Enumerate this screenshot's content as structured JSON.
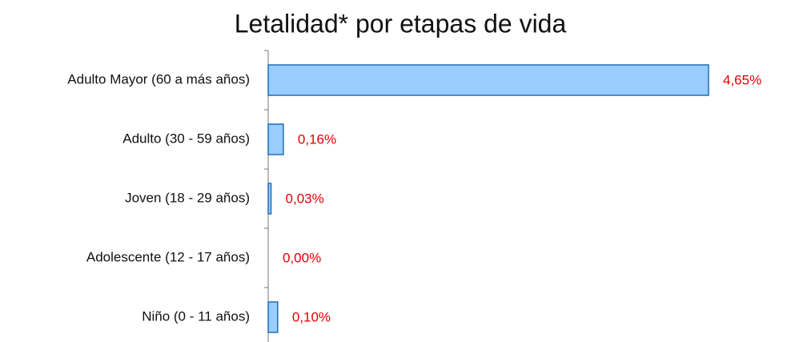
{
  "chart_data": {
    "type": "hbar",
    "title": "Letalidad* por etapas de vida",
    "categories": [
      "Adulto Mayor (60 a más años)",
      "Adulto (30 - 59 años)",
      "Joven (18 - 29 años)",
      "Adolescente (12 - 17 años)",
      "Niño (0 - 11 años)"
    ],
    "values": [
      4.65,
      0.16,
      0.03,
      0.0,
      0.1
    ],
    "value_labels": [
      "4,65%",
      "0,16%",
      "0,03%",
      "0,00%",
      "0,10%"
    ],
    "color": "#99ccff",
    "edge_color": "#1f6fb8",
    "label_color": "#e00000"
  }
}
